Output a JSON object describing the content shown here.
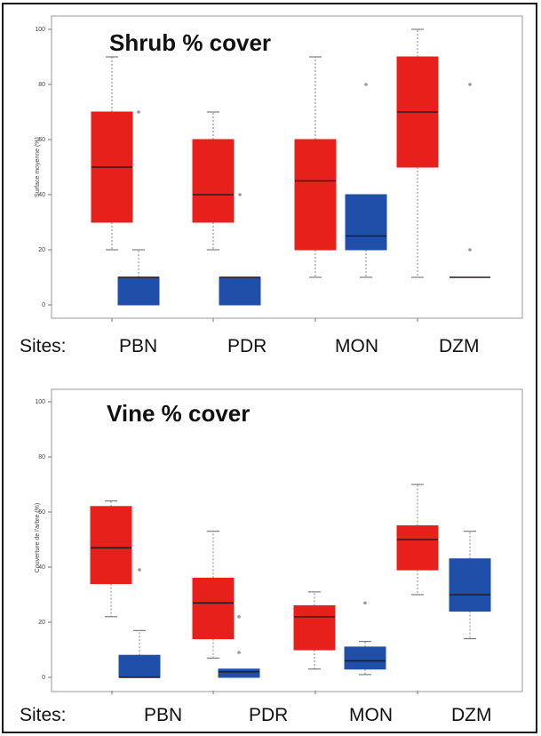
{
  "chart_data": [
    {
      "type": "box",
      "title": "Shrub % cover",
      "ylabel": "Surface moyenne (%)",
      "ylim": [
        0,
        100
      ],
      "yticks": [
        "0",
        "20",
        "40",
        "60",
        "80",
        "100"
      ],
      "sites_label": "Sites:",
      "sites": [
        "PBN",
        "PDR",
        "MON",
        "DZM"
      ],
      "series_colors": [
        "#e8201c",
        "#1f4fa8"
      ],
      "boxes": [
        {
          "site": "PBN",
          "color": "red",
          "whisker_low": 20,
          "q1": 30,
          "median": 50,
          "q3": 70,
          "whisker_high": 90,
          "outliers": []
        },
        {
          "site": "PBN",
          "color": "blue",
          "whisker_low": 0,
          "q1": 0,
          "median": 10,
          "q3": 10,
          "whisker_high": 20,
          "outliers": [
            70
          ]
        },
        {
          "site": "PDR",
          "color": "red",
          "whisker_low": 20,
          "q1": 30,
          "median": 40,
          "q3": 60,
          "whisker_high": 70,
          "outliers": []
        },
        {
          "site": "PDR",
          "color": "blue",
          "whisker_low": 0,
          "q1": 0,
          "median": 10,
          "q3": 10,
          "whisker_high": 10,
          "outliers": [
            40
          ]
        },
        {
          "site": "MON",
          "color": "red",
          "whisker_low": 10,
          "q1": 20,
          "median": 45,
          "q3": 60,
          "whisker_high": 90,
          "outliers": []
        },
        {
          "site": "MON",
          "color": "blue",
          "whisker_low": 10,
          "q1": 20,
          "median": 25,
          "q3": 40,
          "whisker_high": 40,
          "outliers": [
            80
          ]
        },
        {
          "site": "DZM",
          "color": "red",
          "whisker_low": 10,
          "q1": 50,
          "median": 70,
          "q3": 90,
          "whisker_high": 100,
          "outliers": []
        },
        {
          "site": "DZM",
          "color": "blue",
          "whisker_low": 10,
          "q1": 10,
          "median": 10,
          "q3": 10,
          "whisker_high": 10,
          "outliers": [
            80,
            20
          ]
        }
      ]
    },
    {
      "type": "box",
      "title": "Vine % cover",
      "ylabel": "Couverture de l'arbre (%)",
      "ylim": [
        0,
        100
      ],
      "yticks": [
        "0",
        "20",
        "40",
        "60",
        "80",
        "100"
      ],
      "sites_label": "Sites:",
      "sites": [
        "PBN",
        "PDR",
        "MON",
        "DZM"
      ],
      "series_colors": [
        "#e8201c",
        "#1f4fa8"
      ],
      "boxes": [
        {
          "site": "PBN",
          "color": "red",
          "whisker_low": 22,
          "q1": 34,
          "median": 47,
          "q3": 62,
          "whisker_high": 64,
          "outliers": []
        },
        {
          "site": "PBN",
          "color": "blue",
          "whisker_low": 0,
          "q1": 0,
          "median": 0,
          "q3": 8,
          "whisker_high": 17,
          "outliers": [
            39
          ]
        },
        {
          "site": "PDR",
          "color": "red",
          "whisker_low": 7,
          "q1": 14,
          "median": 27,
          "q3": 36,
          "whisker_high": 53,
          "outliers": []
        },
        {
          "site": "PDR",
          "color": "blue",
          "whisker_low": 0,
          "q1": 0,
          "median": 2,
          "q3": 3,
          "whisker_high": 3,
          "outliers": [
            22,
            9
          ]
        },
        {
          "site": "MON",
          "color": "red",
          "whisker_low": 3,
          "q1": 10,
          "median": 22,
          "q3": 26,
          "whisker_high": 31,
          "outliers": []
        },
        {
          "site": "MON",
          "color": "blue",
          "whisker_low": 1,
          "q1": 3,
          "median": 6,
          "q3": 11,
          "whisker_high": 13,
          "outliers": [
            27
          ]
        },
        {
          "site": "DZM",
          "color": "red",
          "whisker_low": 30,
          "q1": 39,
          "median": 50,
          "q3": 55,
          "whisker_high": 70,
          "outliers": []
        },
        {
          "site": "DZM",
          "color": "blue",
          "whisker_low": 14,
          "q1": 24,
          "median": 30,
          "q3": 43,
          "whisker_high": 53,
          "outliers": []
        }
      ]
    }
  ]
}
